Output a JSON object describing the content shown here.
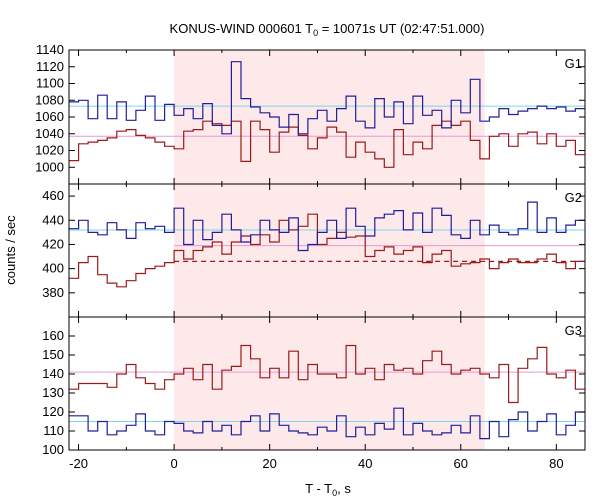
{
  "chart_data": {
    "type": "line",
    "title": "KONUS-WIND 000601 T",
    "title_sub": "0",
    "title_rest": " = 10071s UT (02:47:51.000)",
    "xlabel": "T - T",
    "xlabel_sub": "0",
    "xlabel_rest": ", s",
    "ylabel": "counts / sec",
    "xlim": [
      -22,
      86
    ],
    "xticks": [
      -20,
      0,
      20,
      40,
      60,
      80
    ],
    "highlight": {
      "x0": 0,
      "x1": 65,
      "color": "#fde8ea"
    },
    "colors": {
      "blue": "#1f1f9c",
      "red": "#9b1a1a",
      "cyan": "#7fd3e6",
      "pink": "#e59ad6"
    },
    "x_edges": [
      -22,
      -20,
      -18,
      -16,
      -14,
      -12,
      -10,
      -8,
      -6,
      -4,
      -2,
      0,
      2,
      4,
      6,
      8,
      10,
      12,
      14,
      16,
      18,
      20,
      22,
      24,
      26,
      28,
      30,
      32,
      34,
      36,
      38,
      40,
      42,
      44,
      46,
      48,
      50,
      52,
      54,
      56,
      58,
      60,
      62,
      64,
      66,
      68,
      70,
      72,
      74,
      76,
      78,
      80,
      82,
      84,
      86
    ],
    "panels": [
      {
        "label": "G1",
        "ylim": [
          980,
          1140
        ],
        "yticks": [
          980,
          1000,
          1020,
          1040,
          1060,
          1080,
          1100,
          1120,
          1140
        ],
        "blue_mean": 1073,
        "red_mean": 1037,
        "blue": [
          1078,
          1080,
          1058,
          1086,
          1058,
          1078,
          1056,
          1068,
          1085,
          1056,
          1075,
          1062,
          1070,
          1058,
          1076,
          1050,
          1040,
          1126,
          1082,
          1072,
          1065,
          1060,
          1048,
          1063,
          1040,
          1058,
          1068,
          1055,
          1070,
          1085,
          1055,
          1047,
          1082,
          1060,
          1078,
          1052,
          1085,
          1062,
          1068,
          1047,
          1080,
          1065,
          1105,
          1055,
          1060,
          1070,
          1063,
          1067,
          1070,
          1073,
          1070,
          1072,
          1067,
          1070
        ],
        "red": [
          1008,
          1028,
          1030,
          1032,
          1035,
          1043,
          1045,
          1038,
          1035,
          1030,
          1025,
          1022,
          1043,
          1045,
          1055,
          1052,
          1050,
          1055,
          1007,
          1055,
          1045,
          1018,
          1042,
          1048,
          1038,
          1022,
          1035,
          1048,
          1042,
          1012,
          1030,
          1018,
          1010,
          1000,
          1045,
          1015,
          1030,
          1022,
          1050,
          1055,
          1050,
          1055,
          1032,
          1010,
          1037,
          1040,
          1025,
          1040,
          1042,
          1028,
          1040,
          1025,
          1032,
          1015
        ]
      },
      {
        "label": "G2",
        "ylim": [
          360,
          470
        ],
        "yticks": [
          360,
          380,
          400,
          420,
          440,
          460
        ],
        "blue_mean": 432,
        "red_mean": 419,
        "red_mean_x": [
          0,
          86
        ],
        "red_dash": 406,
        "red_dash_x": [
          0,
          86
        ],
        "blue": [
          433,
          440,
          430,
          428,
          438,
          432,
          425,
          438,
          433,
          435,
          430,
          450,
          420,
          440,
          424,
          430,
          445,
          432,
          422,
          428,
          440,
          432,
          430,
          442,
          415,
          420,
          430,
          440,
          425,
          450,
          435,
          427,
          442,
          445,
          448,
          432,
          446,
          430,
          450,
          444,
          428,
          425,
          440,
          428,
          436,
          430,
          428,
          433,
          455,
          430,
          442,
          430,
          436,
          440
        ],
        "red": [
          392,
          405,
          410,
          395,
          388,
          385,
          390,
          396,
          400,
          402,
          405,
          415,
          408,
          415,
          418,
          422,
          412,
          422,
          427,
          420,
          428,
          422,
          440,
          432,
          435,
          445,
          420,
          425,
          430,
          426,
          427,
          410,
          415,
          418,
          412,
          415,
          418,
          405,
          412,
          415,
          402,
          404,
          405,
          408,
          400,
          405,
          408,
          405,
          405,
          408,
          412,
          405,
          400,
          406
        ]
      },
      {
        "label": "G3",
        "ylim": [
          100,
          170
        ],
        "yticks": [
          100,
          110,
          120,
          130,
          140,
          150,
          160
        ],
        "blue_mean": 115,
        "red_mean": 141,
        "blue": [
          118,
          118,
          110,
          115,
          108,
          110,
          113,
          119,
          110,
          108,
          115,
          114,
          110,
          109,
          115,
          110,
          113,
          108,
          115,
          118,
          110,
          119,
          113,
          110,
          109,
          108,
          112,
          110,
          118,
          107,
          112,
          108,
          114,
          111,
          122,
          108,
          114,
          110,
          108,
          109,
          113,
          109,
          118,
          106,
          115,
          107,
          116,
          120,
          110,
          115,
          119,
          108,
          113,
          120
        ],
        "red": [
          132,
          135,
          135,
          135,
          133,
          140,
          145,
          138,
          135,
          132,
          137,
          140,
          143,
          137,
          145,
          132,
          142,
          144,
          155,
          148,
          138,
          143,
          138,
          152,
          137,
          145,
          140,
          140,
          138,
          155,
          140,
          143,
          137,
          145,
          142,
          143,
          140,
          147,
          152,
          145,
          140,
          142,
          143,
          140,
          138,
          145,
          125,
          143,
          148,
          154,
          140,
          138,
          142,
          132
        ]
      }
    ]
  }
}
